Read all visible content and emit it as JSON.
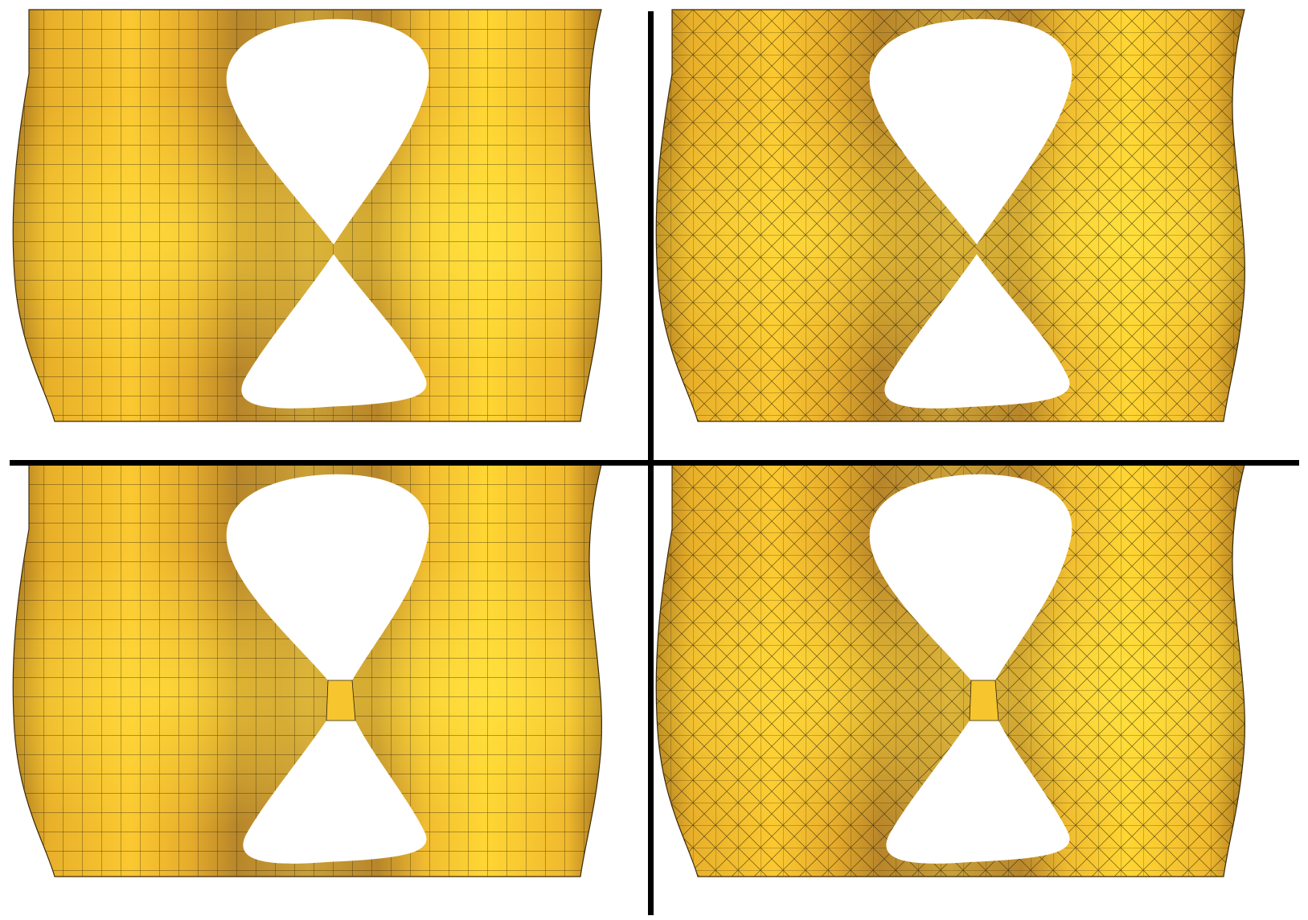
{
  "figure": {
    "panels": [
      {
        "id": "top-left",
        "mesh": "quad",
        "junction": "pinched"
      },
      {
        "id": "top-right",
        "mesh": "triangle",
        "junction": "pinched"
      },
      {
        "id": "bottom-left",
        "mesh": "quad",
        "junction": "bridged"
      },
      {
        "id": "bottom-right",
        "mesh": "triangle",
        "junction": "bridged"
      }
    ],
    "colors": {
      "surface_light": "#ffd633",
      "surface_mid": "#f5c12c",
      "surface_dark": "#b8862a",
      "wire": "#2b2208",
      "divider": "#000000",
      "background": "#ffffff"
    }
  }
}
